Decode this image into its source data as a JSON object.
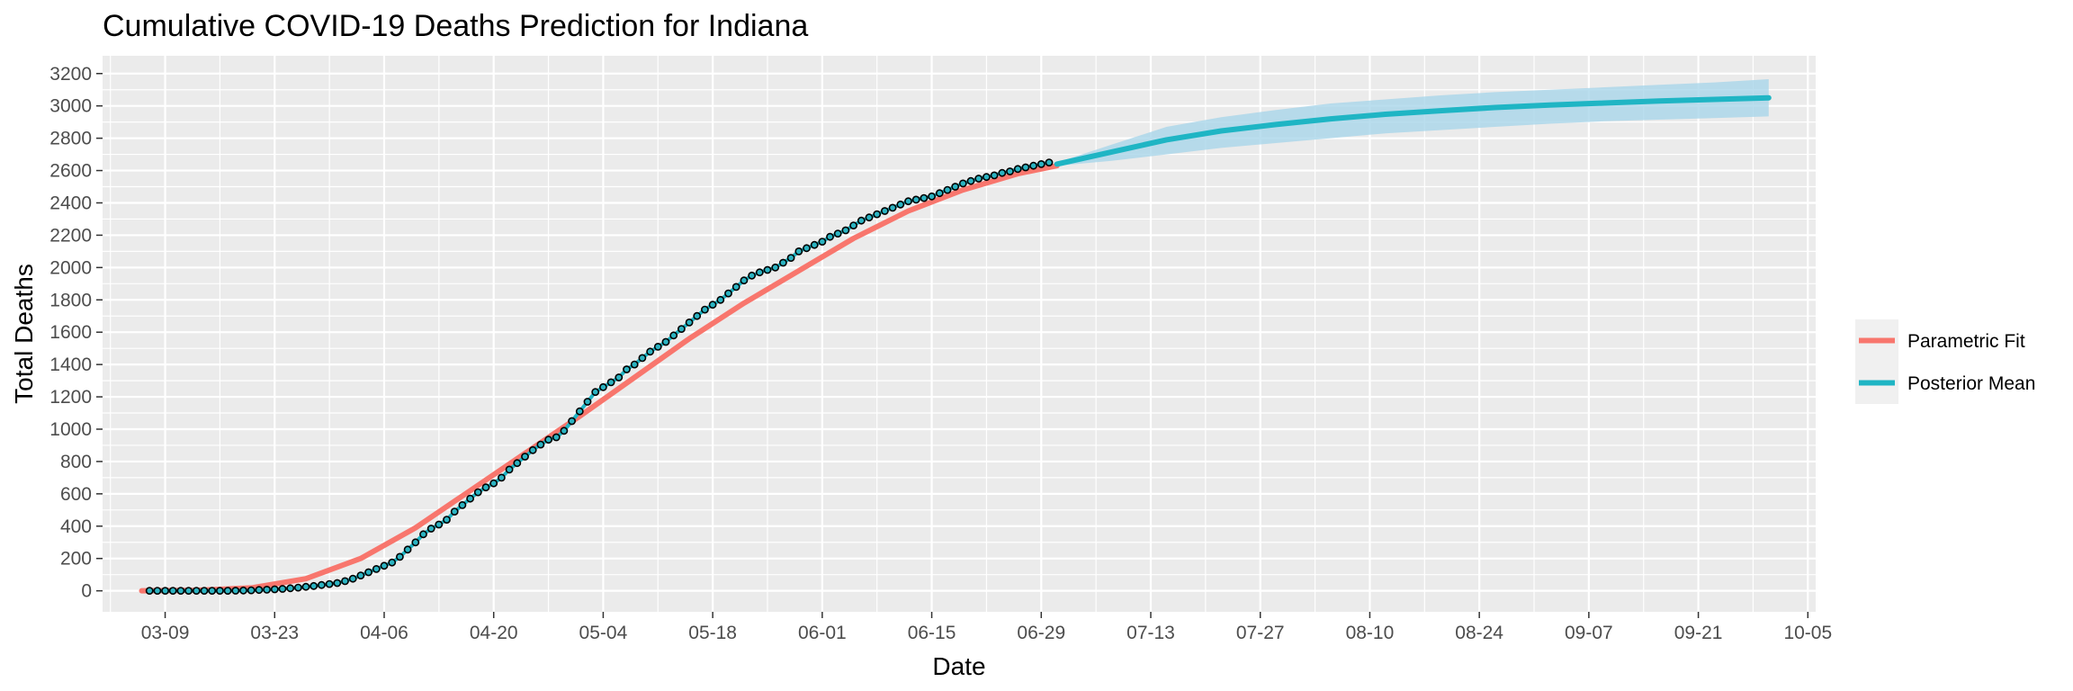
{
  "chart_data": {
    "type": "line",
    "title": "Cumulative COVID-19 Deaths Prediction for Indiana",
    "xlabel": "Date",
    "ylabel": "Total Deaths",
    "x_axis_type": "date",
    "xlim": [
      "2020-03-01",
      "2020-10-06"
    ],
    "ylim": [
      -130,
      3310
    ],
    "x_ticks": [
      {
        "date": "2020-03-09",
        "label": "03-09"
      },
      {
        "date": "2020-03-23",
        "label": "03-23"
      },
      {
        "date": "2020-04-06",
        "label": "04-06"
      },
      {
        "date": "2020-04-20",
        "label": "04-20"
      },
      {
        "date": "2020-05-04",
        "label": "05-04"
      },
      {
        "date": "2020-05-18",
        "label": "05-18"
      },
      {
        "date": "2020-06-01",
        "label": "06-01"
      },
      {
        "date": "2020-06-15",
        "label": "06-15"
      },
      {
        "date": "2020-06-29",
        "label": "06-29"
      },
      {
        "date": "2020-07-13",
        "label": "07-13"
      },
      {
        "date": "2020-07-27",
        "label": "07-27"
      },
      {
        "date": "2020-08-10",
        "label": "08-10"
      },
      {
        "date": "2020-08-24",
        "label": "08-24"
      },
      {
        "date": "2020-09-07",
        "label": "09-07"
      },
      {
        "date": "2020-09-21",
        "label": "09-21"
      },
      {
        "date": "2020-10-05",
        "label": "10-05"
      }
    ],
    "y_ticks": [
      0,
      200,
      400,
      600,
      800,
      1000,
      1200,
      1400,
      1600,
      1800,
      2000,
      2200,
      2400,
      2600,
      2800,
      3000,
      3200
    ],
    "grid": true,
    "legend_position": "right",
    "colors": {
      "panel_bg": "#ebebeb",
      "grid": "#ffffff",
      "parametric": "#f8766d",
      "posterior": "#1fb5c4",
      "band": "#a9d6ea",
      "point_fill": "#2bb3c1",
      "point_stroke": "#000000"
    },
    "series": [
      {
        "name": "Parametric Fit",
        "kind": "line",
        "x": [
          "2020-03-06",
          "2020-03-13",
          "2020-03-20",
          "2020-03-27",
          "2020-04-03",
          "2020-04-10",
          "2020-04-17",
          "2020-04-24",
          "2020-05-01",
          "2020-05-08",
          "2020-05-15",
          "2020-05-22",
          "2020-05-29",
          "2020-06-05",
          "2020-06-12",
          "2020-06-19",
          "2020-06-26",
          "2020-07-01"
        ],
        "y": [
          0,
          3,
          18,
          75,
          200,
          390,
          620,
          850,
          1080,
          1320,
          1560,
          1780,
          1980,
          2180,
          2350,
          2480,
          2580,
          2630
        ]
      },
      {
        "name": "Posterior Mean",
        "kind": "line",
        "x": [
          "2020-07-01",
          "2020-07-08",
          "2020-07-15",
          "2020-07-22",
          "2020-07-29",
          "2020-08-05",
          "2020-08-12",
          "2020-08-19",
          "2020-08-26",
          "2020-09-02",
          "2020-09-09",
          "2020-09-16",
          "2020-09-23",
          "2020-09-30"
        ],
        "y": [
          2640,
          2715,
          2790,
          2845,
          2885,
          2920,
          2948,
          2970,
          2990,
          3005,
          3018,
          3030,
          3040,
          3050
        ],
        "band_lower": [
          2630,
          2660,
          2700,
          2740,
          2770,
          2800,
          2830,
          2850,
          2870,
          2890,
          2905,
          2915,
          2925,
          2935
        ],
        "band_upper": [
          2650,
          2760,
          2870,
          2930,
          2975,
          3015,
          3040,
          3065,
          3085,
          3100,
          3115,
          3130,
          3145,
          3165
        ]
      },
      {
        "name": "Observed",
        "kind": "points",
        "start_date": "2020-03-07",
        "y": [
          0,
          0,
          0,
          0,
          0,
          0,
          0,
          0,
          0,
          0,
          0,
          1,
          2,
          3,
          5,
          7,
          9,
          12,
          16,
          20,
          25,
          30,
          36,
          42,
          48,
          60,
          75,
          95,
          115,
          135,
          155,
          175,
          210,
          255,
          300,
          350,
          385,
          410,
          440,
          490,
          530,
          570,
          610,
          640,
          665,
          700,
          750,
          790,
          830,
          870,
          905,
          935,
          950,
          990,
          1050,
          1110,
          1170,
          1230,
          1260,
          1290,
          1320,
          1370,
          1400,
          1440,
          1480,
          1510,
          1540,
          1580,
          1620,
          1660,
          1700,
          1740,
          1770,
          1800,
          1840,
          1880,
          1920,
          1950,
          1970,
          1985,
          2000,
          2030,
          2060,
          2100,
          2120,
          2140,
          2160,
          2190,
          2210,
          2230,
          2260,
          2290,
          2310,
          2330,
          2350,
          2370,
          2390,
          2410,
          2420,
          2430,
          2440,
          2460,
          2480,
          2500,
          2520,
          2535,
          2550,
          2560,
          2570,
          2585,
          2595,
          2610,
          2620,
          2630,
          2640,
          2650
        ]
      }
    ]
  }
}
